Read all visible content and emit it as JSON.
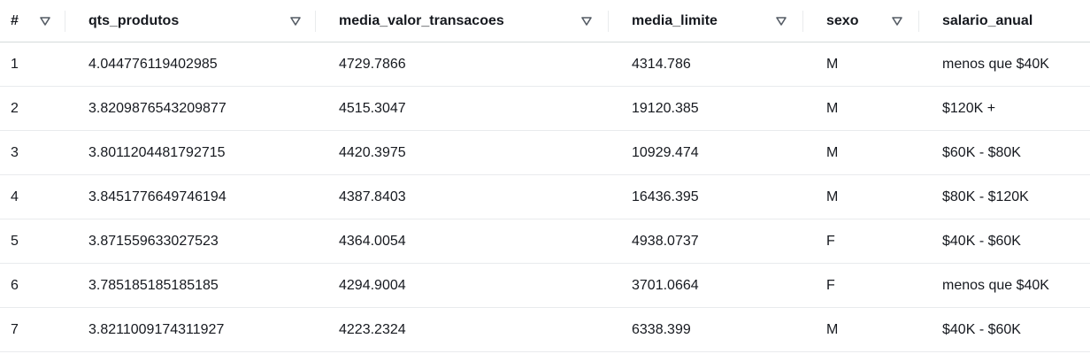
{
  "table": {
    "columns": [
      {
        "label": "#",
        "sortable": true
      },
      {
        "label": "qts_produtos",
        "sortable": true
      },
      {
        "label": "media_valor_transacoes",
        "sortable": true
      },
      {
        "label": "media_limite",
        "sortable": true
      },
      {
        "label": "sexo",
        "sortable": true
      },
      {
        "label": "salario_anual",
        "sortable": false
      }
    ],
    "rows": [
      [
        "1",
        "4.044776119402985",
        "4729.7866",
        "4314.786",
        "M",
        "menos que $40K"
      ],
      [
        "2",
        "3.8209876543209877",
        "4515.3047",
        "19120.385",
        "M",
        "$120K +"
      ],
      [
        "3",
        "3.8011204481792715",
        "4420.3975",
        "10929.474",
        "M",
        "$60K - $80K"
      ],
      [
        "4",
        "3.8451776649746194",
        "4387.8403",
        "16436.395",
        "M",
        "$80K - $120K"
      ],
      [
        "5",
        "3.871559633027523",
        "4364.0054",
        "4938.0737",
        "F",
        "$40K - $60K"
      ],
      [
        "6",
        "3.785185185185185",
        "4294.9004",
        "3701.0664",
        "F",
        "menos que $40K"
      ],
      [
        "7",
        "3.8211009174311927",
        "4223.2324",
        "6338.399",
        "M",
        "$40K - $60K"
      ]
    ]
  },
  "icons": {
    "sort": "sort-descending-triangle-icon"
  },
  "colors": {
    "text": "#16191f",
    "row_border": "#e9ebed",
    "icon": "#545b64"
  }
}
